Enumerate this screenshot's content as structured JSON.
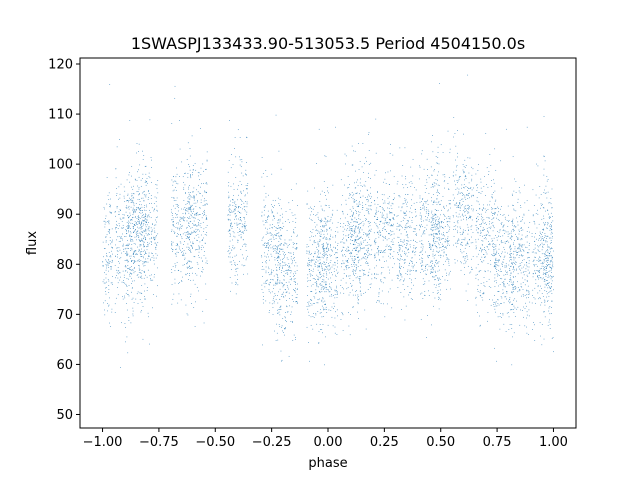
{
  "chart_data": {
    "type": "scatter",
    "title": "1SWASPJ133433.90-513053.5 Period 4504150.0s",
    "xlabel": "phase",
    "ylabel": "flux",
    "xlim": [
      -1.1,
      1.1
    ],
    "ylim": [
      47.3,
      121.2
    ],
    "xticks": [
      -1.0,
      -0.75,
      -0.5,
      -0.25,
      0.0,
      0.25,
      0.5,
      0.75,
      1.0
    ],
    "xtick_labels": [
      "−1.00",
      "−0.75",
      "−0.50",
      "−0.25",
      "0.00",
      "0.25",
      "0.50",
      "0.75",
      "1.00"
    ],
    "yticks": [
      50,
      60,
      70,
      80,
      90,
      100,
      110,
      120
    ],
    "ytick_labels": [
      "50",
      "60",
      "70",
      "80",
      "90",
      "100",
      "110",
      "120"
    ],
    "grid": false,
    "marker_color": "#1f77b4",
    "series": [
      {
        "phase_center": [
          -1.0,
          -0.9,
          -0.85,
          -0.8,
          -0.65,
          -0.58,
          -0.4,
          -0.25,
          -0.18,
          -0.05,
          0.0,
          0.1,
          0.15,
          0.25,
          0.35,
          0.45,
          0.5,
          0.6,
          0.7,
          0.78,
          0.85,
          0.95,
          1.0
        ],
        "flux_median": [
          82,
          84,
          86,
          86,
          87,
          88,
          89,
          82,
          79,
          80,
          81,
          84,
          86,
          86,
          85,
          87,
          86,
          90,
          86,
          80,
          81,
          82,
          81
        ]
      }
    ]
  }
}
